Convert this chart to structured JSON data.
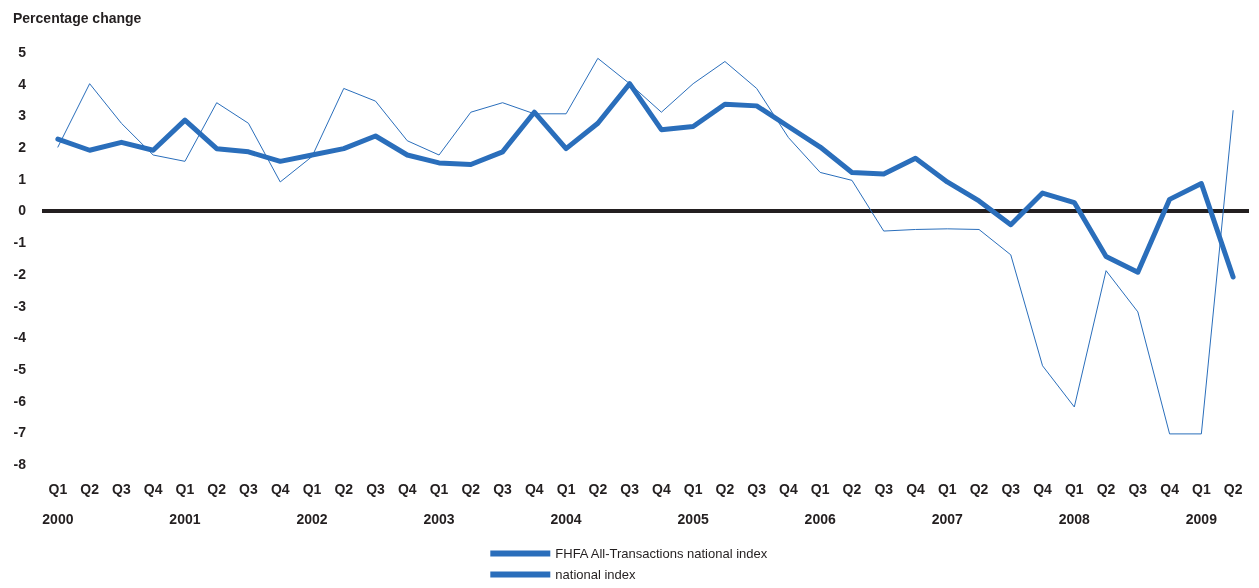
{
  "chart_data": {
    "type": "line",
    "ylabel": "Percentage change",
    "categories": [
      "Q1\n2000",
      "Q2",
      "Q3",
      "Q4",
      "Q1\n2001",
      "Q2",
      "Q3",
      "Q4",
      "Q1\n2002",
      "Q2",
      "Q3",
      "Q4",
      "Q1\n2003",
      "Q2",
      "Q3",
      "Q4",
      "Q1\n2004",
      "Q2",
      "Q3",
      "Q4",
      "Q1\n2005",
      "Q2",
      "Q3",
      "Q4",
      "Q1\n2006",
      "Q2",
      "Q3",
      "Q4",
      "Q1\n2007",
      "Q2",
      "Q3",
      "Q4",
      "Q1\n2008",
      "Q2",
      "Q3",
      "Q4",
      "Q1\n2009",
      "Q2"
    ],
    "series": [
      {
        "name": "FHFA All-Transactions national index",
        "color": "#2a6ebb",
        "values": [
          2.25,
          1.9,
          2.15,
          1.9,
          2.85,
          1.95,
          1.85,
          1.55,
          1.75,
          1.95,
          2.35,
          1.75,
          1.5,
          1.45,
          1.85,
          3.1,
          1.95,
          2.75,
          4.0,
          2.55,
          2.65,
          3.35,
          3.3,
          2.65,
          2.0,
          1.2,
          1.15,
          1.65,
          0.9,
          0.3,
          -0.45,
          0.55,
          0.25,
          -1.45,
          -1.95,
          0.35,
          0.85,
          -2.1
        ]
      },
      {
        "name": "national index",
        "color": "#2a6ebb",
        "values": [
          2.0,
          4.0,
          2.75,
          1.75,
          1.55,
          3.4,
          2.75,
          0.9,
          1.7,
          3.85,
          3.45,
          2.2,
          1.75,
          3.1,
          3.4,
          3.05,
          3.05,
          4.8,
          4.0,
          3.1,
          4.0,
          4.7,
          3.85,
          2.3,
          1.2,
          0.95,
          -0.65,
          -0.6,
          -0.58,
          -0.6,
          -1.4,
          -4.9,
          -6.2,
          -1.9,
          -3.2,
          -7.05,
          -7.05,
          3.15
        ]
      }
    ],
    "ylim": [
      -8,
      5
    ],
    "yticks": [
      -8,
      -7,
      -6,
      -5,
      -4,
      -3,
      -2,
      -1,
      0,
      1,
      2,
      3,
      4,
      5
    ],
    "ref_lines": [
      {
        "axis": "y",
        "value": 0,
        "color": "#231f20"
      }
    ],
    "grid": false,
    "legend": "bottom",
    "marker": "none",
    "line_style": "solid"
  }
}
